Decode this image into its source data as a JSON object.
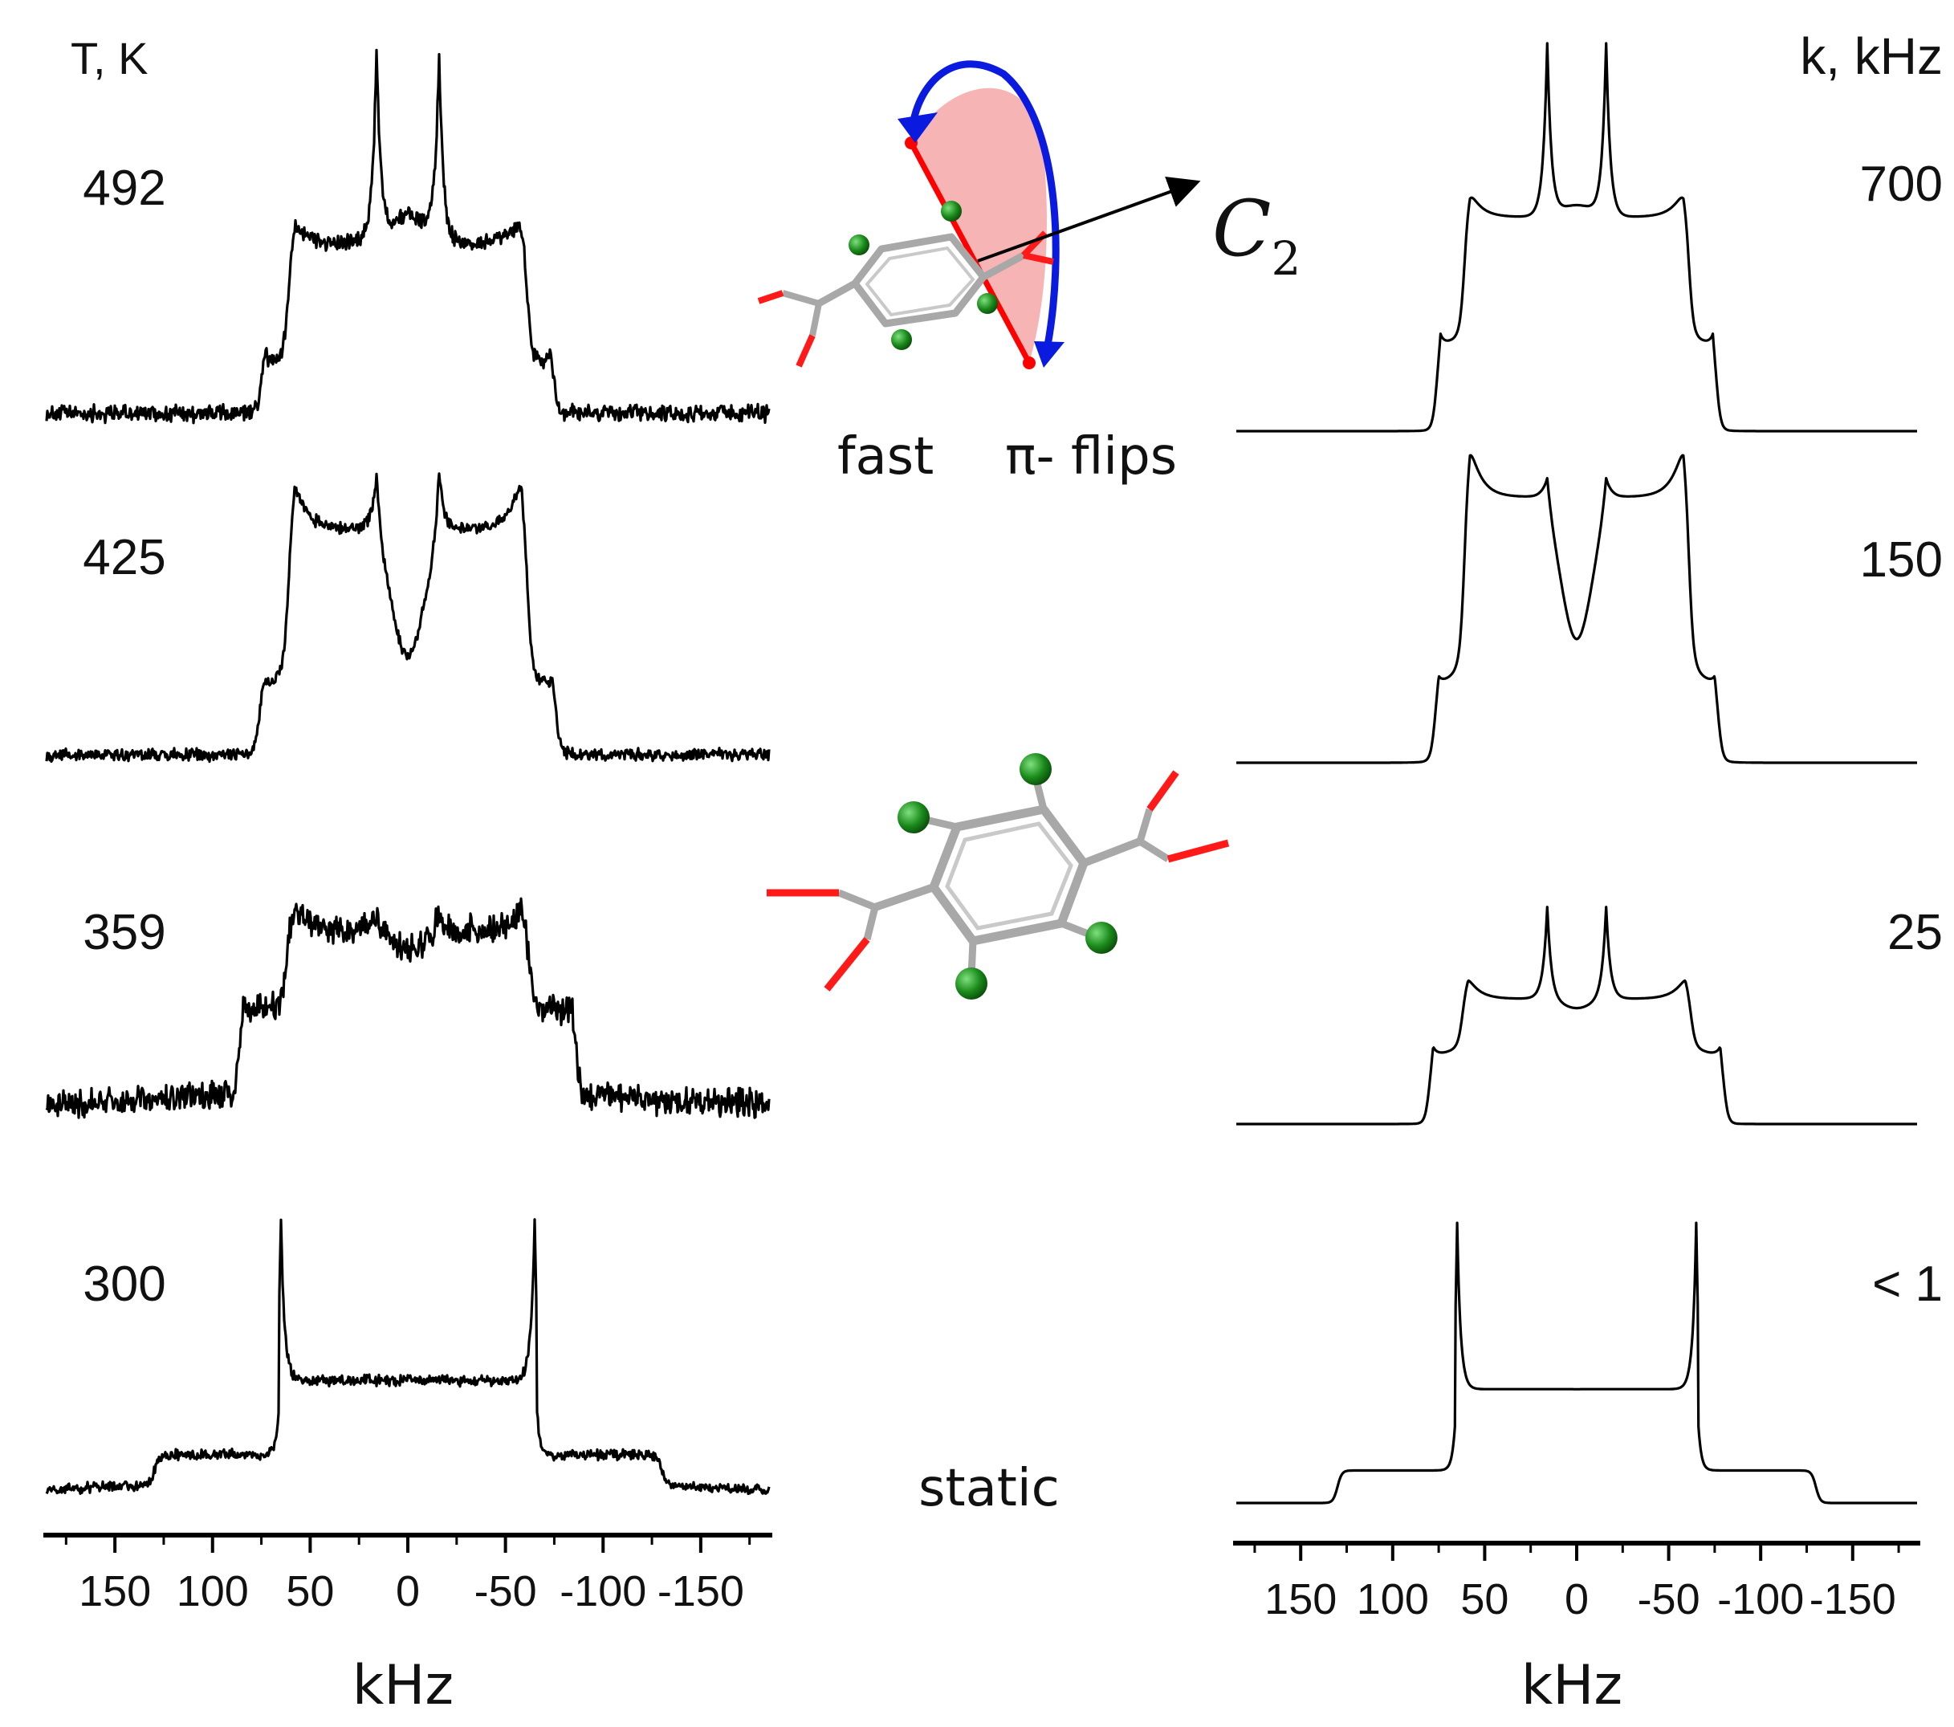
{
  "chart_data": [
    {
      "type": "line",
      "panel": "experimental",
      "column_header": "T, K",
      "xlabel": "kHz",
      "xlim": [
        185,
        -185
      ],
      "x_ticks": [
        150,
        100,
        50,
        0,
        -50,
        -100,
        -150
      ],
      "x_tick_labels": [
        "150",
        "100",
        "50",
        "0",
        "-50",
        "-100",
        "-150"
      ],
      "series": [
        {
          "name": "492",
          "shape": {
            "edge_outer": 75,
            "edge_inner": 61,
            "horn": 16,
            "baseline": 0.0,
            "plateau_outer": 0.13,
            "plateau_inner": 0.47,
            "horn_height": 1.0,
            "dip": 0.55,
            "noise": 0.035
          }
        },
        {
          "name": "425",
          "shape": {
            "edge_outer": 76,
            "edge_inner": 61,
            "horn": 16,
            "baseline": 0.0,
            "plateau_outer": 0.22,
            "plateau_inner": 0.77,
            "horn_height": 1.0,
            "dip": 0.34,
            "noise": 0.03
          }
        },
        {
          "name": "359",
          "shape": {
            "edge_outer": 86,
            "edge_inner": 62,
            "horn": 16,
            "baseline": 0.03,
            "plateau_outer": 0.28,
            "plateau_inner": 0.55,
            "horn_height": 0.62,
            "dip": 0.48,
            "noise": 0.07
          }
        },
        {
          "name": "300",
          "shape": {
            "edge_outer": 130,
            "edge_inner": 65,
            "horn": 65,
            "baseline": 0.02,
            "plateau_outer": 0.1,
            "plateau_inner": 0.34,
            "horn_height": 1.0,
            "dip": 0.34,
            "noise": 0.025
          }
        }
      ]
    },
    {
      "type": "line",
      "panel": "simulated",
      "column_header": "k,  kHz",
      "xlabel": "kHz",
      "xlim": [
        185,
        -185
      ],
      "x_ticks": [
        150,
        100,
        50,
        0,
        -50,
        -100,
        -150
      ],
      "x_tick_labels": [
        "150",
        "100",
        "50",
        "0",
        "-50",
        "-100",
        "-150"
      ],
      "series": [
        {
          "name": "700",
          "shape": {
            "edge_outer": 76,
            "edge_inner": 61,
            "horn": 16,
            "baseline": 0.0,
            "plateau_outer": 0.22,
            "plateau_inner": 0.55,
            "horn_height": 1.0,
            "dip": 0.58,
            "noise": 0
          }
        },
        {
          "name": "150",
          "shape": {
            "edge_outer": 77,
            "edge_inner": 61,
            "horn": 16,
            "baseline": 0.0,
            "plateau_outer": 0.25,
            "plateau_inner": 0.86,
            "horn_height": 0.96,
            "dip": 0.4,
            "noise": 0
          }
        },
        {
          "name": "25",
          "shape": {
            "edge_outer": 80,
            "edge_inner": 62,
            "horn": 16,
            "baseline": 0.0,
            "plateau_outer": 0.22,
            "plateau_inner": 0.4,
            "horn_height": 0.7,
            "dip": 0.37,
            "noise": 0
          }
        },
        {
          "name": "< 1",
          "shape": {
            "edge_outer": 130,
            "edge_inner": 65,
            "horn": 65,
            "baseline": 0.0,
            "plateau_outer": 0.1,
            "plateau_inner": 0.35,
            "horn_height": 1.0,
            "dip": 0.35,
            "noise": 0
          }
        }
      ]
    }
  ],
  "annotations": {
    "fast_label": "fast",
    "flips_label": "π- flips",
    "axis_symbol": "C",
    "axis_symbol_sub": "2",
    "static_label": "static"
  },
  "colors": {
    "trace": "#000000",
    "rotation_arrow": "#0a1adf",
    "rotation_fill": "#f4a7a7",
    "axis_line": "#ff0000",
    "oxygen": "#ff1a1a",
    "deuterium": "#1a8a1a",
    "carbon_bond": "#a8a8a8"
  }
}
